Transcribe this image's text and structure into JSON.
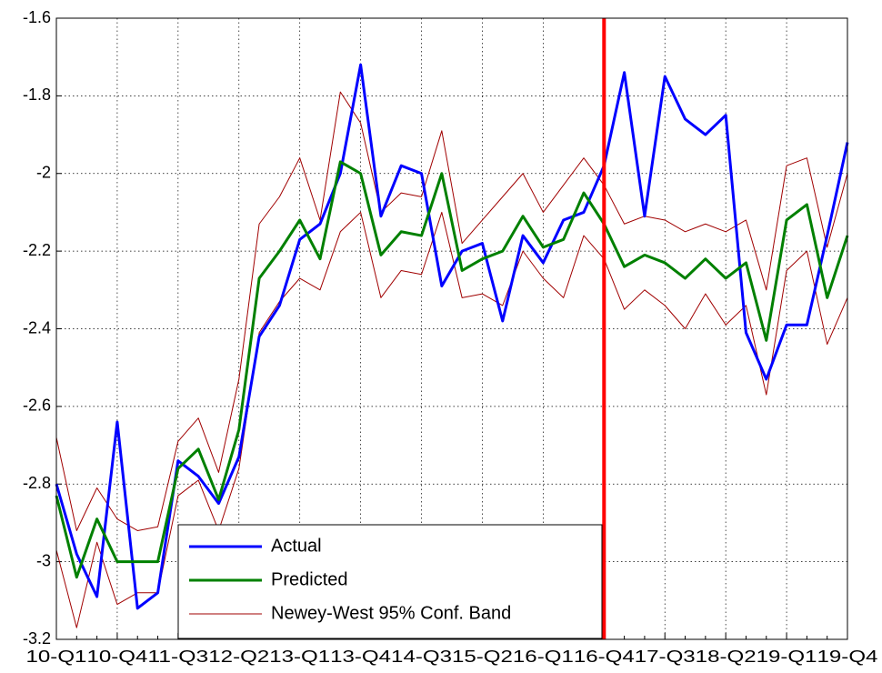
{
  "chart_data": {
    "type": "line",
    "categories": [
      "10-Q1",
      null,
      null,
      "10-Q4",
      null,
      null,
      "11-Q3",
      null,
      null,
      "12-Q2",
      null,
      null,
      "13-Q1",
      null,
      null,
      "13-Q4",
      null,
      null,
      "14-Q3",
      null,
      null,
      "15-Q2",
      null,
      null,
      "16-Q1",
      null,
      null,
      "16-Q4",
      null,
      null,
      "17-Q3",
      null,
      null,
      "18-Q2",
      null,
      null,
      "19-Q1",
      null,
      null,
      "19-Q4"
    ],
    "series": [
      {
        "name": "Actual",
        "color": "#0000ff",
        "width": 3,
        "values": [
          -2.8,
          -2.98,
          -3.09,
          -2.64,
          -3.12,
          -3.08,
          -2.74,
          -2.78,
          -2.85,
          -2.73,
          -2.42,
          -2.34,
          -2.17,
          -2.13,
          -2.0,
          -1.72,
          -2.11,
          -1.98,
          -2.0,
          -2.29,
          -2.2,
          -2.18,
          -2.38,
          -2.16,
          -2.23,
          -2.12,
          -2.1,
          -1.98,
          -1.74,
          -2.11,
          -1.75,
          -1.86,
          -1.9,
          -1.85,
          -2.41,
          -2.53,
          -2.39,
          -2.39,
          -2.16,
          -1.92
        ]
      },
      {
        "name": "Predicted",
        "color": "#008000",
        "width": 3,
        "values": [
          -2.83,
          -3.04,
          -2.89,
          -3.0,
          -3.0,
          -3.0,
          -2.76,
          -2.71,
          -2.84,
          -2.66,
          -2.27,
          -2.2,
          -2.12,
          -2.22,
          -1.97,
          -2.0,
          -2.21,
          -2.15,
          -2.16,
          -2.0,
          -2.25,
          -2.22,
          -2.2,
          -2.11,
          -2.19,
          -2.17,
          -2.05,
          -2.13,
          -2.24,
          -2.21,
          -2.23,
          -2.27,
          -2.22,
          -2.27,
          -2.23,
          -2.43,
          -2.12,
          -2.08,
          -2.32,
          -2.16
        ]
      }
    ],
    "band": {
      "name": "Newey-West 95% Conf. Band",
      "color": "#a00000",
      "upper": [
        -2.68,
        -2.92,
        -2.81,
        -2.89,
        -2.92,
        -2.91,
        -2.69,
        -2.63,
        -2.77,
        -2.53,
        -2.13,
        -2.06,
        -1.96,
        -2.12,
        -1.79,
        -1.87,
        -2.1,
        -2.05,
        -2.06,
        -1.89,
        -2.18,
        -2.12,
        -2.06,
        -2.0,
        -2.1,
        -2.03,
        -1.96,
        -2.03,
        -2.13,
        -2.11,
        -2.12,
        -2.15,
        -2.13,
        -2.15,
        -2.12,
        -2.3,
        -1.98,
        -1.96,
        -2.19,
        -2.0
      ],
      "lower": [
        -2.97,
        -3.17,
        -2.95,
        -3.11,
        -3.08,
        -3.08,
        -2.83,
        -2.79,
        -2.92,
        -2.76,
        -2.41,
        -2.33,
        -2.27,
        -2.3,
        -2.15,
        -2.1,
        -2.32,
        -2.25,
        -2.26,
        -2.1,
        -2.32,
        -2.31,
        -2.34,
        -2.2,
        -2.27,
        -2.32,
        -2.16,
        -2.22,
        -2.35,
        -2.3,
        -2.34,
        -2.4,
        -2.31,
        -2.39,
        -2.34,
        -2.57,
        -2.25,
        -2.2,
        -2.44,
        -2.32
      ]
    },
    "vline_category": "16-Q4",
    "vline_color": "#ff0000",
    "ylim": [
      -3.2,
      -1.6
    ],
    "yticks": [
      -3.2,
      -3,
      -2.8,
      -2.6,
      -2.4,
      -2.2,
      -2,
      -1.8,
      -1.6
    ],
    "grid": true,
    "legend": "lower left"
  }
}
